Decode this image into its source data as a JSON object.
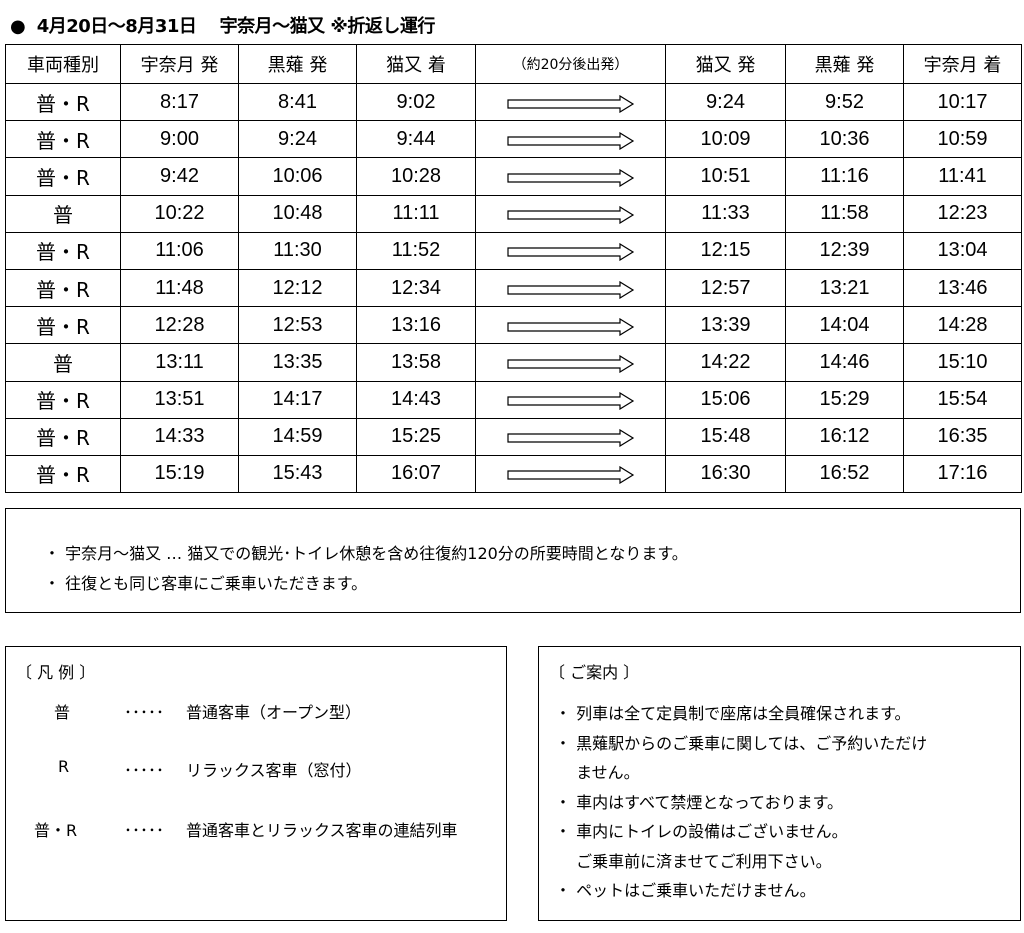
{
  "title": "●  4月20日～8月31日　 宇奈月～猫又 ※折返し運行",
  "table": {
    "headers": [
      "車両種別",
      "宇奈月 発",
      "黒薙 発",
      "猫又 着",
      "（約20分後出発）",
      "猫又 発",
      "黒薙 発",
      "宇奈月 着"
    ],
    "rows": [
      [
        "普・R",
        "8:17",
        "8:41",
        "9:02",
        "9:24",
        "9:52",
        "10:17"
      ],
      [
        "普・R",
        "9:00",
        "9:24",
        "9:44",
        "10:09",
        "10:36",
        "10:59"
      ],
      [
        "普・R",
        "9:42",
        "10:06",
        "10:28",
        "10:51",
        "11:16",
        "11:41"
      ],
      [
        "普",
        "10:22",
        "10:48",
        "11:11",
        "11:33",
        "11:58",
        "12:23"
      ],
      [
        "普・R",
        "11:06",
        "11:30",
        "11:52",
        "12:15",
        "12:39",
        "13:04"
      ],
      [
        "普・R",
        "11:48",
        "12:12",
        "12:34",
        "12:57",
        "13:21",
        "13:46"
      ],
      [
        "普・R",
        "12:28",
        "12:53",
        "13:16",
        "13:39",
        "14:04",
        "14:28"
      ],
      [
        "普",
        "13:11",
        "13:35",
        "13:58",
        "14:22",
        "14:46",
        "15:10"
      ],
      [
        "普・R",
        "13:51",
        "14:17",
        "14:43",
        "15:06",
        "15:29",
        "15:54"
      ],
      [
        "普・R",
        "14:33",
        "14:59",
        "15:25",
        "15:48",
        "16:12",
        "16:35"
      ],
      [
        "普・R",
        "15:19",
        "15:43",
        "16:07",
        "16:30",
        "16:52",
        "17:16"
      ]
    ]
  },
  "notes": [
    "・ 宇奈月～猫又 … 猫又での観光･トイレ休憩を含め往復約120分の所要時間となります。",
    "・ 往復とも同じ客車にご乗車いただきます。"
  ],
  "legend": {
    "heading": "〔 凡  例 〕",
    "items": [
      {
        "symbol": "普",
        "dots": "･････",
        "desc": "普通客車（オープン型）"
      },
      {
        "symbol": "R",
        "dots": "･････",
        "desc": "リラックス客車（窓付）"
      },
      {
        "symbol": "普・R",
        "dots": "･････",
        "desc": "普通客車とリラックス客車の連結列車"
      }
    ]
  },
  "guide": {
    "heading": "〔 ご案内 〕",
    "lines": [
      "・ 列車は全て定員制で座席は全員確保されます。",
      "・ 黒薙駅からのご乗車に関しては、ご予約いただけ",
      "　 ません。",
      "・ 車内はすべて禁煙となっております。",
      "・ 車内にトイレの設備はございません。",
      "　 ご乗車前に済ませてご利用下さい。",
      "・ ペットはご乗車いただけません。"
    ]
  }
}
